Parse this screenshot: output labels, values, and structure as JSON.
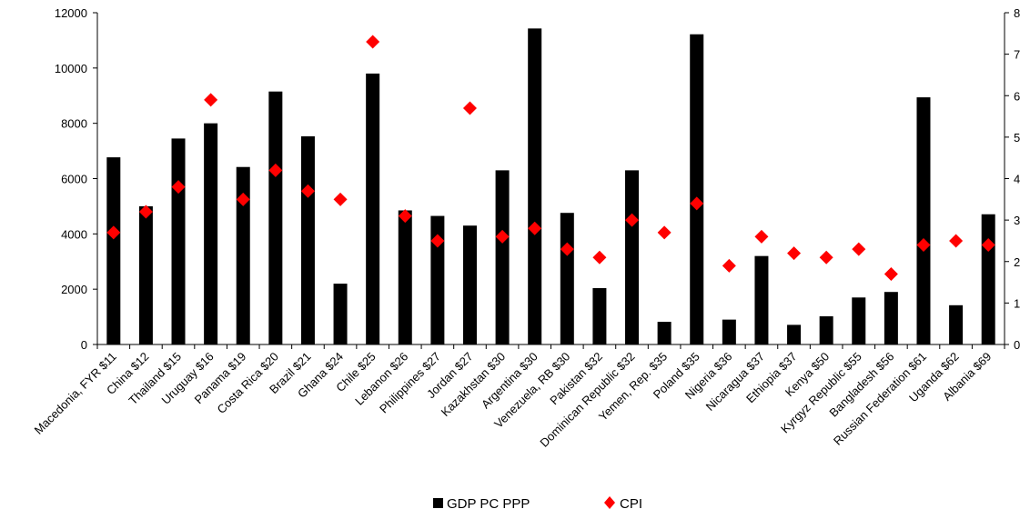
{
  "chart_data": {
    "type": "bar",
    "title": "",
    "categories": [
      "Macedonia, FYR $11",
      "China $12",
      "Thailand $15",
      "Uruguay $16",
      "Panama $19",
      "Costa Rica $20",
      "Brazil $21",
      "Ghana $24",
      "Chile $25",
      "Lebanon $26",
      "Philippines $27",
      "Jordan $27",
      "Kazakhstan $30",
      "Argentina $30",
      "Venezuela, RB $30",
      "Pakistan $32",
      "Dominican Republic $32",
      "Yemen, Rep. $35",
      "Poland $35",
      "Nigeria $36",
      "Nicaragua $37",
      "Ethiopia $37",
      "Kenya $50",
      "Kyrgyz Republic $55",
      "Bangladesh $56",
      "Russian Federation $61",
      "Uganda $62",
      "Albania $69"
    ],
    "series": [
      {
        "name": "GDP PC PPP",
        "type": "bar",
        "axis": "left",
        "color": "#000000",
        "values": [
          6770,
          5000,
          7450,
          8000,
          6420,
          9150,
          7530,
          2200,
          9800,
          4850,
          4650,
          4300,
          6300,
          11430,
          4760,
          2040,
          6300,
          820,
          11220,
          900,
          3200,
          710,
          1020,
          1700,
          1900,
          8940,
          1420,
          4710
        ]
      },
      {
        "name": "CPI",
        "type": "scatter",
        "axis": "right",
        "color": "#ff0000",
        "marker": "diamond",
        "values": [
          2.7,
          3.2,
          3.8,
          5.9,
          3.5,
          4.2,
          3.7,
          3.5,
          7.3,
          3.1,
          2.5,
          5.7,
          2.6,
          2.8,
          2.3,
          2.1,
          3.0,
          2.7,
          3.4,
          1.9,
          2.6,
          2.2,
          2.1,
          2.3,
          1.7,
          2.4,
          2.5,
          2.4
        ]
      }
    ],
    "y_left": {
      "min": 0,
      "max": 12000,
      "ticks": [
        0,
        2000,
        4000,
        6000,
        8000,
        10000,
        12000
      ]
    },
    "y_right": {
      "min": 0,
      "max": 8,
      "ticks": [
        0,
        1,
        2,
        3,
        4,
        5,
        6,
        7,
        8
      ]
    },
    "xlabel": "",
    "ylabel": "",
    "grid": false,
    "legend": {
      "position": "bottom",
      "items": [
        {
          "label": "GDP PC PPP",
          "marker": "square",
          "color": "#000000"
        },
        {
          "label": "CPI",
          "marker": "diamond",
          "color": "#ff0000"
        }
      ]
    }
  }
}
